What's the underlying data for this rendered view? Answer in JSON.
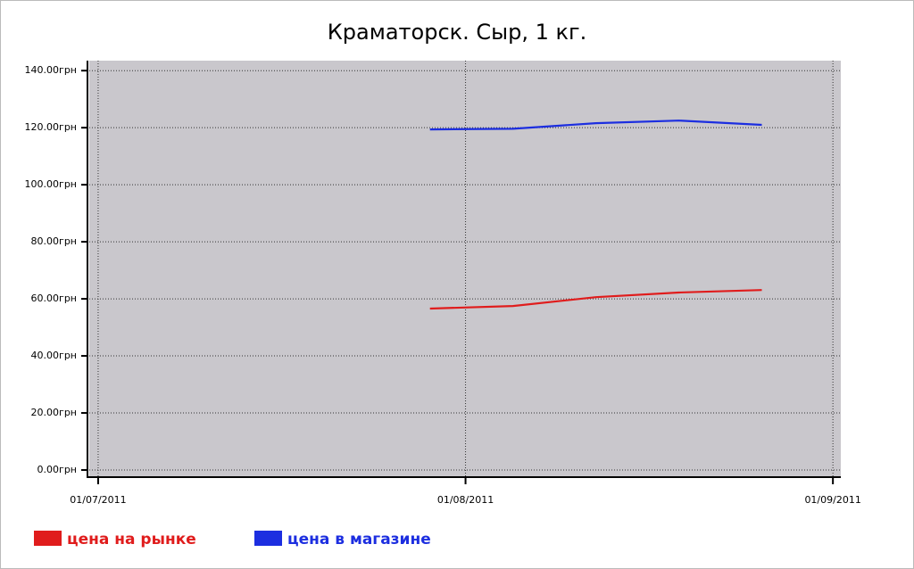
{
  "chart_data": {
    "type": "line",
    "title": "Краматорск. Сыр, 1 кг.",
    "x": [
      "2011-07-29",
      "2011-08-05",
      "2011-08-12",
      "2011-08-19",
      "2011-08-26"
    ],
    "series": [
      {
        "name": "цена на рынке",
        "color": "#e01c1c",
        "values": [
          56.6,
          57.5,
          60.6,
          62.2,
          63.1
        ]
      },
      {
        "name": "цена в магазине",
        "color": "#1c2ee0",
        "values": [
          119.4,
          119.6,
          121.6,
          122.5,
          121
        ]
      }
    ],
    "xlim": [
      "2011-06-30T06:00",
      "2011-09-01T16:00"
    ],
    "xticks": [
      {
        "value": "2011-07-01",
        "label": "01/07/2011"
      },
      {
        "value": "2011-08-01",
        "label": "01/08/2011"
      },
      {
        "value": "2011-09-01",
        "label": "01/09/2011"
      }
    ],
    "ylim": [
      -2.5,
      143.5
    ],
    "yticks": [
      {
        "value": 0,
        "label": "0.00грн"
      },
      {
        "value": 20,
        "label": "20.00грн"
      },
      {
        "value": 40,
        "label": "40.00грн"
      },
      {
        "value": 60,
        "label": "60.00грн"
      },
      {
        "value": 80,
        "label": "80.00грн"
      },
      {
        "value": 100,
        "label": "100.00грн"
      },
      {
        "value": 120,
        "label": "120.00грн"
      },
      {
        "value": 140,
        "label": "140.00грн"
      }
    ],
    "grid": true,
    "background": "#c9c7cc"
  }
}
